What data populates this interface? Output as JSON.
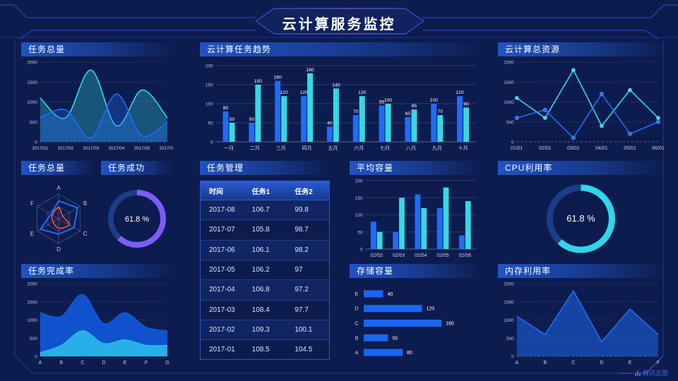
{
  "header": {
    "title": "云计算服务监控"
  },
  "footer": {
    "brand": "腾讯云图"
  },
  "colors": {
    "blue": "#1f6cf9",
    "cyan": "#35d8e5",
    "purple": "#7c5cfa",
    "cyanBright": "#2fd5ea",
    "red": "#ff5a3c",
    "gaugeTrack": "#1c3d87",
    "blueArea": "#1057d8",
    "skyArea": "#29b7ea",
    "hbar": "#1a66f0"
  },
  "panels": {
    "taskTotalArea": {
      "title": "任务总量"
    },
    "cloudTaskTrend": {
      "title": "云计算任务趋势"
    },
    "cloudTotalResources": {
      "title": "云计算总资源"
    },
    "taskTotalRadar": {
      "title": "任务总量"
    },
    "taskSuccess": {
      "title": "任务成功"
    },
    "taskManage": {
      "title": "任务管理"
    },
    "avgCapacity": {
      "title": "平均容量"
    },
    "cpuUsage": {
      "title": "CPU利用率"
    },
    "completionRate": {
      "title": "任务完成率"
    },
    "storageCapacity": {
      "title": "存储容量"
    },
    "memoryUsage": {
      "title": "内存利用率"
    }
  },
  "table": {
    "columns": [
      "时间",
      "任务1",
      "任务2"
    ],
    "rows": [
      [
        "2017-08",
        "106.7",
        "99.8"
      ],
      [
        "2017-07",
        "105.8",
        "98.7"
      ],
      [
        "2017-06",
        "106.1",
        "98.2"
      ],
      [
        "2017-05",
        "106.2",
        "97"
      ],
      [
        "2017-04",
        "106.8",
        "97.2"
      ],
      [
        "2017-03",
        "108.4",
        "97.7"
      ],
      [
        "2017-02",
        "109.3",
        "100.1"
      ],
      [
        "2017-01",
        "108.5",
        "104.5"
      ]
    ]
  },
  "chart_data": [
    {
      "id": "task-total-trend",
      "type": "area",
      "title": "任务总量",
      "smooth": true,
      "area": true,
      "x": [
        "2017/01",
        "2017/02",
        "2017/03",
        "2017/04",
        "2017/05",
        "2017/06"
      ],
      "series": [
        {
          "name": "cyan-series",
          "color": "cyan",
          "values": [
            1100,
            600,
            1800,
            400,
            1300,
            600
          ]
        },
        {
          "name": "blue-series",
          "color": "blue",
          "values": [
            600,
            800,
            100,
            1200,
            150,
            500
          ]
        }
      ],
      "ylim": [
        0,
        2000
      ],
      "yticks": [
        0,
        500,
        1000,
        1500,
        2000
      ],
      "grid": "dashed"
    },
    {
      "id": "cloud-task-trend",
      "type": "bar",
      "title": "云计算任务趋势",
      "labels": true,
      "categories": [
        "一月",
        "二月",
        "三月",
        "四月",
        "五月",
        "六月",
        "七月",
        "八月",
        "九月",
        "十月"
      ],
      "series": [
        {
          "name": "任务1",
          "color": "blue",
          "values": [
            80,
            50,
            160,
            120,
            40,
            70,
            95,
            65,
            100,
            120
          ]
        },
        {
          "name": "任务2",
          "color": "cyan",
          "values": [
            50,
            150,
            120,
            180,
            140,
            120,
            100,
            85,
            70,
            90
          ]
        }
      ],
      "ylim": [
        0,
        200
      ],
      "yticks": [
        0,
        50,
        100,
        150,
        200
      ],
      "grid": "solid"
    },
    {
      "id": "cloud-total-resources",
      "type": "line",
      "title": "云计算总资源",
      "markers": true,
      "x": [
        "01/01",
        "02/01",
        "03/01",
        "04/01",
        "05/01",
        "06/01"
      ],
      "series": [
        {
          "name": "cyan-series",
          "color": "cyan",
          "values": [
            1100,
            600,
            1800,
            400,
            1300,
            600
          ]
        },
        {
          "name": "blue-series",
          "color": "blue",
          "values": [
            600,
            800,
            100,
            1200,
            200,
            500
          ]
        }
      ],
      "ylim": [
        0,
        2000
      ],
      "yticks": [
        0,
        500,
        1000,
        1500,
        2000
      ],
      "grid": "dashed"
    },
    {
      "id": "task-total-radar",
      "type": "radar",
      "title": "任务总量",
      "axes": [
        "A",
        "B",
        "C",
        "D",
        "E",
        "F"
      ],
      "max": 1,
      "series": [
        {
          "name": "blue-polygon",
          "color": "blue",
          "values": [
            0.72,
            0.88,
            0.72,
            0.62,
            0.85,
            0.36
          ]
        },
        {
          "name": "red-shape",
          "color": "red",
          "values": [
            0.45,
            0.2,
            0.5,
            0.38,
            0.26,
            0.3
          ]
        }
      ]
    },
    {
      "id": "task-success-gauge",
      "type": "donut",
      "title": "任务成功",
      "value": 61.8,
      "label": "61.8 %",
      "color": "purple"
    },
    {
      "id": "avg-capacity",
      "type": "bar",
      "title": "平均容量",
      "labels": false,
      "categories": [
        "02/02",
        "02/03",
        "02/04",
        "02/05",
        "02/06"
      ],
      "series": [
        {
          "name": "blue-series",
          "color": "blue",
          "values": [
            80,
            50,
            160,
            120,
            40
          ]
        },
        {
          "name": "cyan-series",
          "color": "cyan",
          "values": [
            50,
            150,
            120,
            180,
            140
          ]
        }
      ],
      "ylim": [
        0,
        200
      ],
      "yticks": [
        0,
        50,
        100,
        150,
        200
      ],
      "grid": "solid"
    },
    {
      "id": "cpu-gauge",
      "type": "donut",
      "title": "CPU利用率",
      "value": 61.8,
      "label": "61.8 %",
      "color": "cyanBright"
    },
    {
      "id": "completion-area",
      "type": "area",
      "title": "任务完成率",
      "smooth": true,
      "area": true,
      "opaque": true,
      "x": [
        "A",
        "B",
        "C",
        "D",
        "E",
        "F",
        "G"
      ],
      "series": [
        {
          "name": "blue-area",
          "color": "blueArea",
          "values": [
            1200,
            1100,
            1700,
            900,
            1200,
            800,
            700
          ]
        },
        {
          "name": "sky-area",
          "color": "skyArea",
          "values": [
            100,
            300,
            700,
            350,
            450,
            300,
            300
          ]
        }
      ],
      "ylim": [
        0,
        2000
      ],
      "yticks": [
        0,
        500,
        1000,
        1500,
        2000
      ],
      "grid": "dashed"
    },
    {
      "id": "storage-hbar",
      "type": "hbar",
      "title": "存储容量",
      "categories": [
        "E",
        "D",
        "C",
        "B",
        "A"
      ],
      "values": [
        40,
        120,
        160,
        50,
        80
      ],
      "xmax": 170
    },
    {
      "id": "memory-line",
      "type": "line",
      "title": "内存利用率",
      "x": [
        "A",
        "B",
        "C",
        "D",
        "E",
        "F"
      ],
      "series": [
        {
          "name": "blue-series",
          "color": "blue",
          "values": [
            1100,
            600,
            1800,
            400,
            1300,
            600
          ],
          "fill": true
        }
      ],
      "ylim": [
        0,
        2000
      ],
      "yticks": [
        0,
        500,
        1000,
        1500,
        2000
      ],
      "grid": "dashed"
    }
  ]
}
